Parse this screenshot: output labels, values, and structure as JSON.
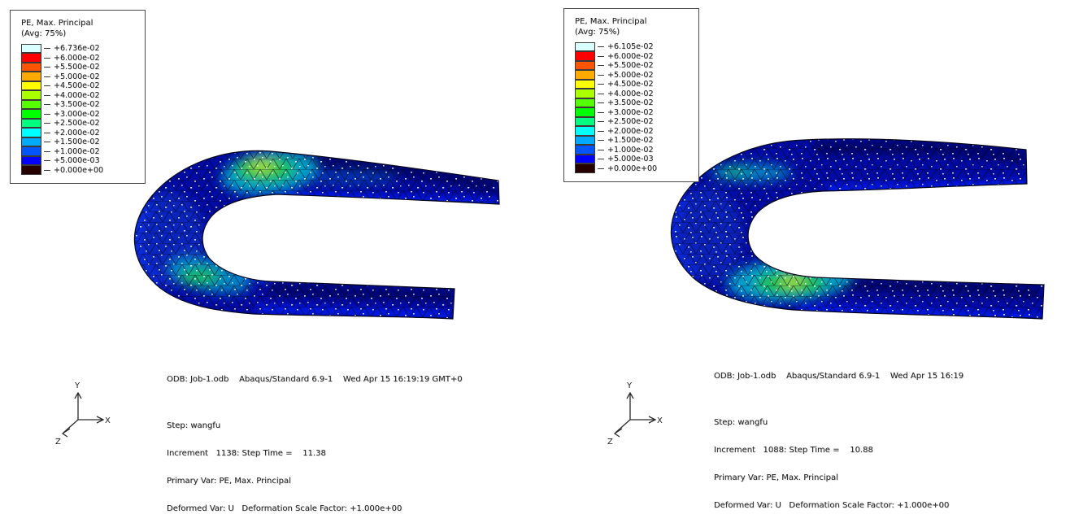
{
  "viewers": [
    {
      "side": "left",
      "legend": {
        "title": "PE, Max. Principal",
        "subtitle": "(Avg: 75%)",
        "entries": [
          {
            "color": "#d9ffff",
            "label": "+6.736e-02"
          },
          {
            "color": "#ff0000",
            "label": "+6.000e-02"
          },
          {
            "color": "#ff5500",
            "label": "+5.500e-02"
          },
          {
            "color": "#ffaa00",
            "label": "+5.000e-02"
          },
          {
            "color": "#ffff00",
            "label": "+4.500e-02"
          },
          {
            "color": "#aaff00",
            "label": "+4.000e-02"
          },
          {
            "color": "#55ff00",
            "label": "+3.500e-02"
          },
          {
            "color": "#00ff00",
            "label": "+3.000e-02"
          },
          {
            "color": "#00ff7f",
            "label": "+2.500e-02"
          },
          {
            "color": "#00ffff",
            "label": "+2.000e-02"
          },
          {
            "color": "#00aaff",
            "label": "+1.500e-02"
          },
          {
            "color": "#0055ff",
            "label": "+1.000e-02"
          },
          {
            "color": "#0000ff",
            "label": "+5.000e-03"
          },
          {
            "color": "#260000",
            "label": "+0.000e+00"
          }
        ]
      },
      "annotations": {
        "odb_line": "ODB: Job-1.odb    Abaqus/Standard 6.9-1    Wed Apr 15 16:19:19 GMT+0",
        "step_line": "Step: wangfu",
        "increment_line": "Increment   1138: Step Time =    11.38",
        "primary_line": "Primary Var: PE, Max. Principal",
        "deformed_line": "Deformed Var: U   Deformation Scale Factor: +1.000e+00"
      },
      "triad": {
        "x_label": "X",
        "y_label": "Y",
        "z_label": "Z"
      },
      "mesh": {
        "base_color": "#000aa4",
        "bright_edge": "#0018f0",
        "dark_shade": "#000440",
        "hotspot_outer": "#00b7d2",
        "hotspot_mid": "#1dc34d",
        "hotspot_core": "#b8e42e",
        "bend_tint": "#1846dc"
      }
    },
    {
      "side": "right",
      "legend": {
        "title": "PE, Max. Principal",
        "subtitle": "(Avg: 75%)",
        "entries": [
          {
            "color": "#d9ffff",
            "label": "+6.105e-02"
          },
          {
            "color": "#ff0000",
            "label": "+6.000e-02"
          },
          {
            "color": "#ff5500",
            "label": "+5.500e-02"
          },
          {
            "color": "#ffaa00",
            "label": "+5.000e-02"
          },
          {
            "color": "#ffff00",
            "label": "+4.500e-02"
          },
          {
            "color": "#aaff00",
            "label": "+4.000e-02"
          },
          {
            "color": "#55ff00",
            "label": "+3.500e-02"
          },
          {
            "color": "#00ff00",
            "label": "+3.000e-02"
          },
          {
            "color": "#00ff7f",
            "label": "+2.500e-02"
          },
          {
            "color": "#00ffff",
            "label": "+2.000e-02"
          },
          {
            "color": "#00aaff",
            "label": "+1.500e-02"
          },
          {
            "color": "#0055ff",
            "label": "+1.000e-02"
          },
          {
            "color": "#0000ff",
            "label": "+5.000e-03"
          },
          {
            "color": "#260000",
            "label": "+0.000e+00"
          }
        ]
      },
      "annotations": {
        "odb_line": "ODB: Job-1.odb    Abaqus/Standard 6.9-1    Wed Apr 15 16:19",
        "step_line": "Step: wangfu",
        "increment_line": "Increment   1088: Step Time =    10.88",
        "primary_line": "Primary Var: PE, Max. Principal",
        "deformed_line": "Deformed Var: U   Deformation Scale Factor: +1.000e+00"
      },
      "triad": {
        "x_label": "X",
        "y_label": "Y",
        "z_label": "Z"
      },
      "mesh": {
        "base_color": "#000aa4",
        "bright_edge": "#0018f0",
        "dark_shade": "#000440",
        "hotspot_outer": "#00b7d2",
        "hotspot_mid": "#1dc34d",
        "hotspot_core": "#b8e42e",
        "bend_tint": "#1846dc"
      }
    }
  ]
}
